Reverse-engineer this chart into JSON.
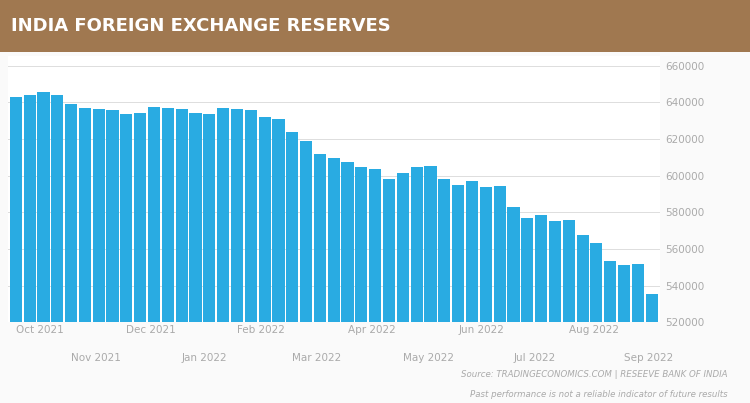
{
  "title": "INDIA FOREIGN EXCHANGE RESERVES",
  "title_bg_color": "#A07850",
  "title_text_color": "#FFFFFF",
  "bar_color": "#29ABE2",
  "background_color": "#FAFAFA",
  "plot_bg_color": "#FFFFFF",
  "grid_color": "#DDDDDD",
  "values": [
    643000,
    644000,
    645500,
    644000,
    639000,
    637000,
    636500,
    636000,
    633500,
    634000,
    637500,
    637000,
    636500,
    634000,
    633500,
    637000,
    636500,
    636000,
    632000,
    631000,
    624000,
    619000,
    612000,
    609500,
    607500,
    604500,
    603500,
    598000,
    601500,
    604500,
    605000,
    598000,
    595000,
    597000,
    594000,
    594500,
    583000,
    577000,
    578500,
    575500,
    576000,
    567500,
    563500,
    553500,
    551500,
    552000,
    535500
  ],
  "x_major_labels": [
    "Oct 2021",
    "Dec 2021",
    "Feb 2022",
    "Apr 2022",
    "Jun 2022",
    "Aug 2022"
  ],
  "x_major_positions": [
    0,
    8,
    16,
    24,
    32,
    40
  ],
  "x_minor_labels": [
    "Nov 2021",
    "Jan 2022",
    "Mar 2022",
    "May 2022",
    "Jul 2022",
    "Sep 2022"
  ],
  "x_minor_positions": [
    4,
    12,
    20,
    28,
    36,
    44
  ],
  "ylim": [
    520000,
    665000
  ],
  "yticks": [
    520000,
    540000,
    560000,
    580000,
    600000,
    620000,
    640000,
    660000
  ],
  "source_text": "Source: TRADINGECONOMICS.COM | RESEEVE BANK OF INDIA",
  "disclaimer_text": "Past performance is not a reliable indicator of future results",
  "source_color": "#AAAAAA",
  "figsize": [
    7.5,
    4.03
  ],
  "dpi": 100
}
